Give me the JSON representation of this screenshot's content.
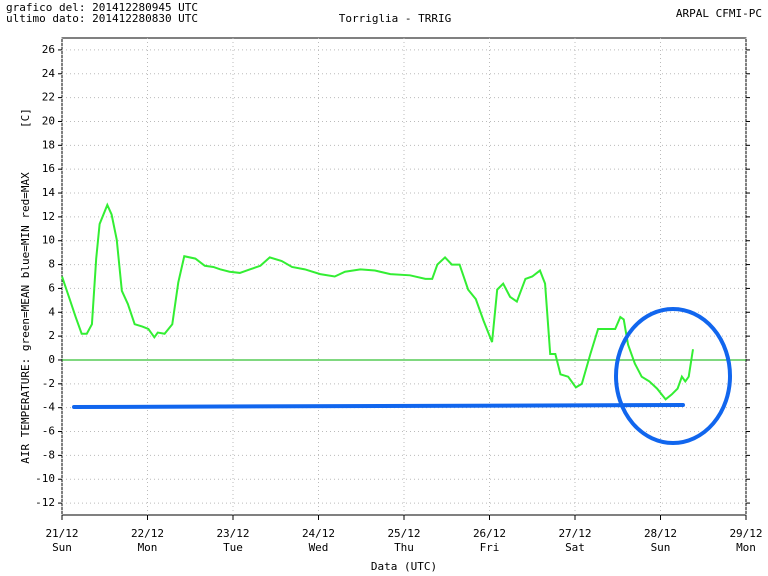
{
  "chart_data": {
    "type": "line",
    "header_left": [
      "grafico del: 201412280945 UTC",
      "ultimo dato: 201412280830 UTC"
    ],
    "title": "Torriglia - TRRIG",
    "header_right": "ARPAL CFMI-PC",
    "ylabel": "AIR TEMPERATURE: green=MEAN  blue=MIN  red=MAX",
    "yunit": "[C]",
    "xlabel": "Data (UTC)",
    "ylim": [
      -13,
      27
    ],
    "yticks": [
      -12,
      -10,
      -8,
      -6,
      -4,
      -2,
      0,
      2,
      4,
      6,
      8,
      10,
      12,
      14,
      16,
      18,
      20,
      22,
      24,
      26
    ],
    "xlim": [
      0,
      8
    ],
    "xticks": [
      {
        "value": 0,
        "label": "21/12"
      },
      {
        "value": 1,
        "label": "22/12"
      },
      {
        "value": 2,
        "label": "23/12"
      },
      {
        "value": 3,
        "label": "24/12"
      },
      {
        "value": 4,
        "label": "25/12"
      },
      {
        "value": 5,
        "label": "26/12"
      },
      {
        "value": 6,
        "label": "27/12"
      },
      {
        "value": 7,
        "label": "28/12"
      },
      {
        "value": 8,
        "label": "29/12"
      }
    ],
    "xtick_days": [
      "Sun",
      "Mon",
      "Tue",
      "Wed",
      "Thu",
      "Fri",
      "Sat",
      "Sun",
      "Mon"
    ],
    "grid": true,
    "zero_line_color": "#00b000",
    "series": [
      {
        "name": "MEAN",
        "color": "#33ee33",
        "x": [
          0,
          0.09,
          0.16,
          0.23,
          0.29,
          0.35,
          0.4,
          0.44,
          0.53,
          0.58,
          0.64,
          0.7,
          0.77,
          0.85,
          0.94,
          1.01,
          1.08,
          1.12,
          1.2,
          1.29,
          1.36,
          1.43,
          1.56,
          1.67,
          1.77,
          1.85,
          1.96,
          2.08,
          2.2,
          2.32,
          2.43,
          2.57,
          2.69,
          2.84,
          3.02,
          3.19,
          3.31,
          3.49,
          3.66,
          3.84,
          4.07,
          4.25,
          4.33,
          4.39,
          4.48,
          4.56,
          4.65,
          4.75,
          4.84,
          4.93,
          5.03,
          5.09,
          5.16,
          5.24,
          5.32,
          5.42,
          5.5,
          5.59,
          5.65,
          5.71,
          5.77,
          5.83,
          5.92,
          6.01,
          6.08,
          6.18,
          6.27,
          6.33,
          6.39,
          6.47,
          6.53,
          6.57,
          6.62,
          6.7,
          6.78,
          6.87,
          6.96,
          7.06,
          7.13,
          7.2,
          7.25,
          7.29,
          7.33,
          7.38
        ],
        "values": [
          7.0,
          5.1,
          3.6,
          2.2,
          2.2,
          3.0,
          8.5,
          11.4,
          13.0,
          12.2,
          10.1,
          5.8,
          4.7,
          3.0,
          2.8,
          2.6,
          1.9,
          2.3,
          2.2,
          3.0,
          6.5,
          8.7,
          8.5,
          7.9,
          7.8,
          7.6,
          7.4,
          7.3,
          7.6,
          7.9,
          8.6,
          8.3,
          7.8,
          7.6,
          7.2,
          7.0,
          7.4,
          7.6,
          7.5,
          7.2,
          7.1,
          6.8,
          6.8,
          8.0,
          8.6,
          8.0,
          8.0,
          5.9,
          5.1,
          3.3,
          1.5,
          5.9,
          6.4,
          5.3,
          4.9,
          6.8,
          7.0,
          7.5,
          6.4,
          0.5,
          0.5,
          -1.2,
          -1.4,
          -2.3,
          -2.0,
          0.5,
          2.6,
          2.6,
          2.6,
          2.6,
          3.6,
          3.4,
          1.3,
          -0.3,
          -1.4,
          -1.8,
          -2.4,
          -3.3,
          -2.9,
          -2.4,
          -1.4,
          -1.8,
          -1.4,
          0.9
        ]
      }
    ]
  }
}
